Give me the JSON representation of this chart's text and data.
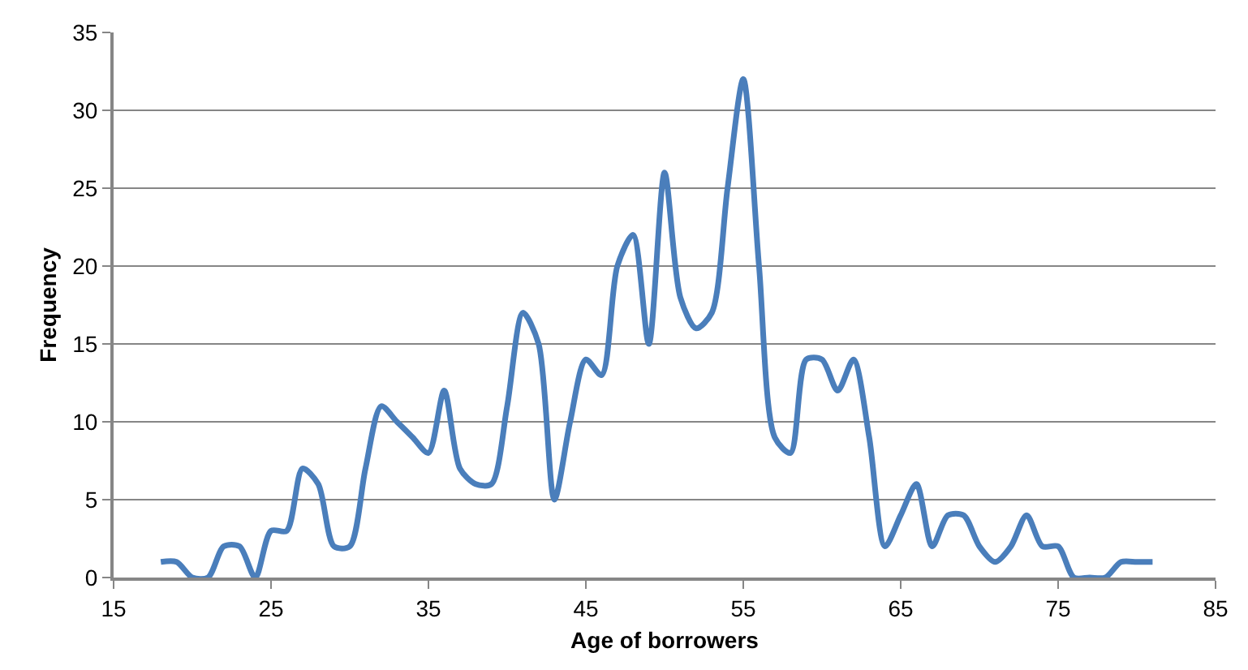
{
  "chart_data": {
    "type": "line",
    "xlabel": "Age of borrowers",
    "ylabel": "Frequency",
    "x": [
      18,
      19,
      20,
      21,
      22,
      23,
      24,
      25,
      26,
      27,
      28,
      29,
      30,
      31,
      32,
      33,
      34,
      35,
      36,
      37,
      38,
      39,
      40,
      41,
      42,
      43,
      44,
      45,
      46,
      47,
      48,
      49,
      50,
      51,
      52,
      53,
      54,
      55,
      56,
      57,
      58,
      59,
      60,
      61,
      62,
      63,
      64,
      65,
      66,
      67,
      68,
      69,
      70,
      71,
      72,
      73,
      74,
      75,
      76,
      77,
      78,
      79,
      80,
      81
    ],
    "series": [
      {
        "color": "#4a7ebb",
        "values": [
          1,
          1,
          0,
          0,
          2,
          2,
          0,
          3,
          3,
          7,
          6,
          2,
          2,
          7,
          11,
          10,
          9,
          8,
          12,
          7,
          6,
          6,
          11,
          17,
          15,
          5,
          10,
          14,
          13,
          20,
          22,
          15,
          26,
          18,
          16,
          17,
          25,
          32,
          20,
          9,
          8,
          14,
          14,
          12,
          14,
          9,
          2,
          4,
          6,
          2,
          4,
          4,
          2,
          1,
          2,
          4,
          2,
          2,
          0,
          0,
          0,
          1,
          1,
          1
        ]
      }
    ],
    "xlim": [
      15,
      85
    ],
    "xticks": [
      15,
      25,
      35,
      45,
      55,
      65,
      75,
      85
    ],
    "ylim": [
      0,
      35
    ],
    "yticks": [
      0,
      5,
      10,
      15,
      20,
      25,
      30,
      35
    ],
    "grid": "y",
    "marker": "none",
    "line_style": "solid"
  }
}
